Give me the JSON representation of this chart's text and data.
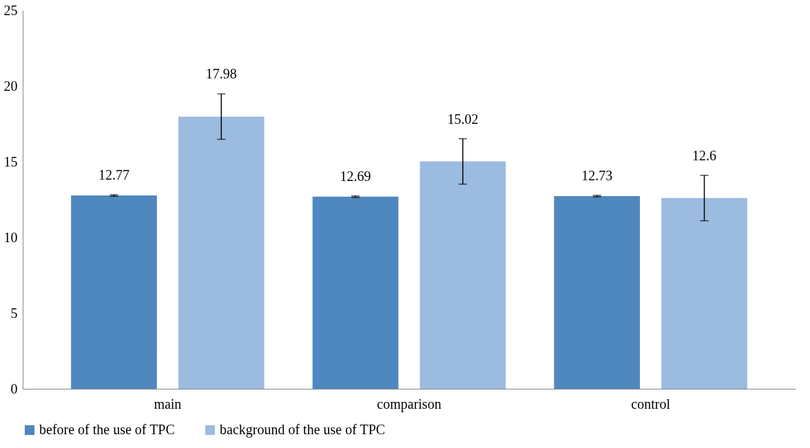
{
  "chart_data": {
    "type": "bar",
    "categories": [
      "main",
      "comparison",
      "control"
    ],
    "series": [
      {
        "name": "before of the use of TPC",
        "color": "#4f88be",
        "values": [
          12.77,
          12.69,
          12.73
        ],
        "errors": [
          0.05,
          0.05,
          0.05
        ]
      },
      {
        "name": "background of the use of TPC",
        "color": "#9bbbe0",
        "values": [
          17.98,
          15.02,
          12.6
        ],
        "errors": [
          1.5,
          1.5,
          1.5
        ]
      }
    ],
    "ylim": [
      0,
      25
    ],
    "yticks": [
      0,
      5,
      10,
      15,
      20,
      25
    ],
    "grid": false,
    "legend": "bottom",
    "data_labels": true
  }
}
